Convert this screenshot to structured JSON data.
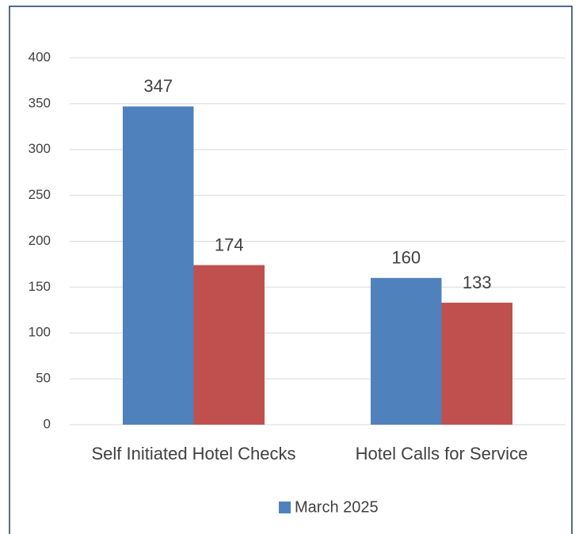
{
  "chart_data": {
    "type": "bar",
    "categories": [
      "Self Initiated Hotel Checks",
      "Hotel Calls for Service"
    ],
    "series": [
      {
        "name": "March 2025",
        "color": "#4f81bd",
        "values": [
          347,
          160
        ]
      },
      {
        "color": "#c0504d",
        "values": [
          174,
          133
        ]
      }
    ],
    "ylim": [
      0,
      400
    ],
    "yticks": [
      0,
      50,
      100,
      150,
      200,
      250,
      300,
      350,
      400
    ],
    "grid": true,
    "legend": "bottom"
  }
}
